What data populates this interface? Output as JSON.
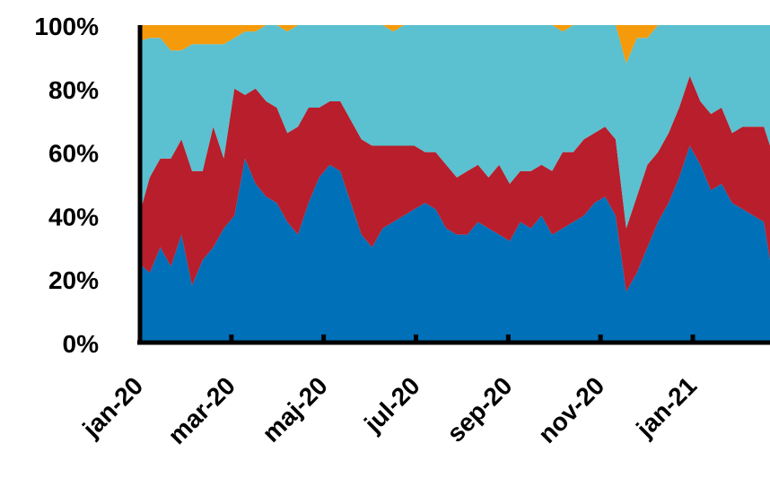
{
  "chart_data": {
    "type": "area",
    "stacked": true,
    "normalized_percent": true,
    "x": [
      "2020-01-01",
      "2020-01-08",
      "2020-01-15",
      "2020-01-22",
      "2020-01-29",
      "2020-02-05",
      "2020-02-12",
      "2020-02-19",
      "2020-02-26",
      "2020-03-04",
      "2020-03-11",
      "2020-03-18",
      "2020-03-25",
      "2020-04-01",
      "2020-04-08",
      "2020-04-15",
      "2020-04-22",
      "2020-04-29",
      "2020-05-06",
      "2020-05-13",
      "2020-05-20",
      "2020-05-27",
      "2020-06-03",
      "2020-06-10",
      "2020-06-17",
      "2020-06-24",
      "2020-07-01",
      "2020-07-08",
      "2020-07-15",
      "2020-07-22",
      "2020-07-29",
      "2020-08-05",
      "2020-08-12",
      "2020-08-19",
      "2020-08-26",
      "2020-09-02",
      "2020-09-09",
      "2020-09-16",
      "2020-09-23",
      "2020-09-30",
      "2020-10-07",
      "2020-10-14",
      "2020-10-21",
      "2020-10-28",
      "2020-11-04",
      "2020-11-11",
      "2020-11-18",
      "2020-11-25",
      "2020-12-02",
      "2020-12-09",
      "2020-12-16",
      "2020-12-23",
      "2020-12-30",
      "2021-01-06",
      "2021-01-13",
      "2021-01-20",
      "2021-01-27",
      "2021-02-03",
      "2021-02-10",
      "2021-02-17",
      "2021-02-24"
    ],
    "series": [
      {
        "color": "#0070b8",
        "values": [
          25,
          22,
          30,
          24,
          34,
          18,
          26,
          30,
          36,
          40,
          58,
          50,
          46,
          44,
          38,
          34,
          44,
          52,
          56,
          54,
          44,
          34,
          30,
          36,
          38,
          40,
          42,
          44,
          42,
          36,
          34,
          34,
          38,
          36,
          34,
          32,
          38,
          36,
          40,
          34,
          36,
          38,
          40,
          44,
          46,
          40,
          16,
          22,
          30,
          38,
          44,
          52,
          62,
          56,
          48,
          50,
          44,
          42,
          40,
          38,
          26
        ]
      },
      {
        "color": "#b81e2c",
        "values": [
          15,
          30,
          28,
          34,
          30,
          36,
          28,
          38,
          22,
          40,
          20,
          30,
          30,
          30,
          28,
          34,
          30,
          22,
          20,
          22,
          26,
          30,
          32,
          26,
          24,
          22,
          20,
          16,
          18,
          20,
          18,
          20,
          18,
          16,
          22,
          18,
          16,
          18,
          16,
          20,
          24,
          22,
          24,
          22,
          22,
          24,
          20,
          24,
          26,
          22,
          22,
          22,
          22,
          20,
          24,
          24,
          22,
          26,
          28,
          30,
          36
        ]
      },
      {
        "color": "#5bc0cf",
        "values": [
          55,
          44,
          38,
          34,
          28,
          40,
          40,
          26,
          36,
          16,
          20,
          18,
          24,
          26,
          32,
          32,
          26,
          26,
          24,
          24,
          30,
          36,
          38,
          38,
          36,
          38,
          38,
          40,
          40,
          44,
          48,
          46,
          44,
          48,
          44,
          50,
          46,
          46,
          44,
          46,
          38,
          40,
          36,
          34,
          32,
          36,
          52,
          50,
          40,
          40,
          34,
          26,
          16,
          24,
          28,
          26,
          34,
          32,
          32,
          32,
          38
        ]
      },
      {
        "color": "#f59a0a",
        "values": [
          5,
          4,
          4,
          8,
          8,
          6,
          6,
          6,
          6,
          4,
          2,
          2,
          0,
          0,
          2,
          0,
          0,
          0,
          0,
          0,
          0,
          0,
          0,
          0,
          2,
          0,
          0,
          0,
          0,
          0,
          0,
          0,
          0,
          0,
          0,
          0,
          0,
          0,
          0,
          0,
          2,
          0,
          0,
          0,
          0,
          0,
          12,
          4,
          4,
          0,
          0,
          0,
          0,
          0,
          0,
          0,
          0,
          0,
          0,
          0,
          0
        ]
      }
    ],
    "ylim": [
      0,
      100
    ],
    "y_ticks": [
      "0%",
      "20%",
      "40%",
      "60%",
      "80%",
      "100%"
    ],
    "x_ticks": [
      "jan-20",
      "mar-20",
      "maj-20",
      "jul-20",
      "sep-20",
      "nov-20",
      "jan-21"
    ],
    "grid": false,
    "legend": "none"
  }
}
